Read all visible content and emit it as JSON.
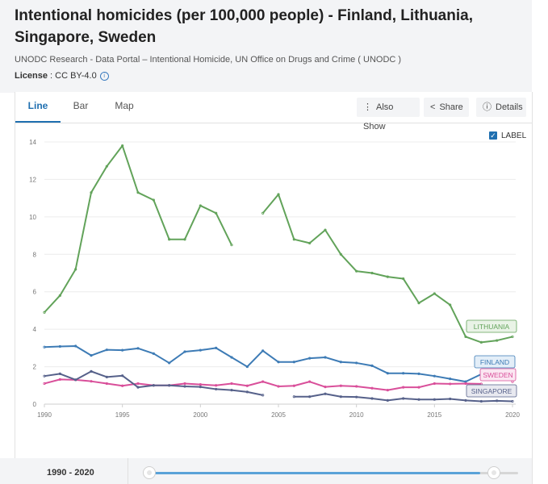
{
  "header": {
    "title": "Intentional homicides (per 100,000 people) - Finland, Lithuania, Singapore, Sweden",
    "source": "UNODC Research - Data Portal – Intentional Homicide, UN Office on Drugs and Crime ( UNODC )",
    "license_label": "License",
    "license_value": " : CC BY-4.0"
  },
  "tabs": [
    {
      "label": "Line",
      "active": true
    },
    {
      "label": "Bar",
      "active": false
    },
    {
      "label": "Map",
      "active": false
    }
  ],
  "toolbar": {
    "also_show": "Also Show",
    "share": "Share",
    "details": "Details"
  },
  "label_toggle": {
    "label": "LABEL",
    "checked": true
  },
  "range": {
    "label": "1990 - 2020",
    "start": 1990,
    "end": 2018,
    "min": 1990,
    "max": 2020
  },
  "chart_data": {
    "type": "line",
    "x": [
      1990,
      1991,
      1992,
      1993,
      1994,
      1995,
      1996,
      1997,
      1998,
      1999,
      2000,
      2001,
      2002,
      2003,
      2004,
      2005,
      2006,
      2007,
      2008,
      2009,
      2010,
      2011,
      2012,
      2013,
      2014,
      2015,
      2016,
      2017,
      2018,
      2019,
      2020
    ],
    "xticks": [
      "1990",
      "1995",
      "2000",
      "2005",
      "2010",
      "2015",
      "2020"
    ],
    "yticks": [
      "0",
      "2",
      "4",
      "6",
      "8",
      "10",
      "12",
      "14"
    ],
    "ylim": [
      0,
      14
    ],
    "grid": true,
    "series": [
      {
        "name": "LITHUANIA",
        "color": "#62a35a",
        "label_color": "#62a35a",
        "label_bg": "#e9f3e6",
        "values": [
          4.9,
          5.8,
          7.2,
          11.3,
          12.7,
          13.8,
          11.3,
          10.9,
          8.8,
          8.8,
          10.6,
          10.2,
          8.5,
          null,
          10.2,
          11.2,
          8.8,
          8.6,
          9.3,
          8.0,
          7.1,
          7.0,
          6.8,
          6.7,
          5.4,
          5.9,
          5.3,
          3.6,
          3.3,
          3.4,
          3.6
        ]
      },
      {
        "name": "FINLAND",
        "color": "#3d7bb5",
        "label_color": "#3d7bb5",
        "label_bg": "#e3eef8",
        "values": [
          3.05,
          3.08,
          3.1,
          2.6,
          2.9,
          2.88,
          2.98,
          2.7,
          2.2,
          2.8,
          2.88,
          3.0,
          2.5,
          2.0,
          2.85,
          2.25,
          2.25,
          2.45,
          2.5,
          2.25,
          2.2,
          2.05,
          1.65,
          1.65,
          1.62,
          1.5,
          1.35,
          1.2,
          1.6,
          null,
          null
        ]
      },
      {
        "name": "SWEDEN",
        "color": "#d94f9a",
        "label_color": "#d94f9a",
        "label_bg": "#fbe7f2",
        "values": [
          1.1,
          1.32,
          1.3,
          1.22,
          1.1,
          0.98,
          1.1,
          1.0,
          1.0,
          1.1,
          1.05,
          1.0,
          1.1,
          0.98,
          1.2,
          0.95,
          0.98,
          1.2,
          0.92,
          0.98,
          0.95,
          0.85,
          0.75,
          0.9,
          0.9,
          1.1,
          1.08,
          1.1,
          1.08,
          null,
          1.2
        ]
      },
      {
        "name": "SINGAPORE",
        "color": "#56618a",
        "label_color": "#56618a",
        "label_bg": "#e8e9f0",
        "values": [
          1.5,
          1.62,
          1.3,
          1.75,
          1.45,
          1.52,
          0.9,
          1.0,
          1.0,
          0.95,
          0.92,
          0.8,
          0.75,
          0.65,
          0.48,
          null,
          0.4,
          0.4,
          0.55,
          0.4,
          0.38,
          0.3,
          0.2,
          0.3,
          0.25,
          0.25,
          0.28,
          0.2,
          0.15,
          0.18,
          0.15
        ]
      }
    ]
  }
}
